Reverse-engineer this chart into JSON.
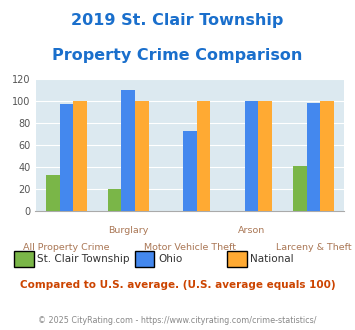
{
  "title_line1": "2019 St. Clair Township",
  "title_line2": "Property Crime Comparison",
  "categories": [
    "All Property Crime",
    "Burglary",
    "Motor Vehicle Theft",
    "Arson",
    "Larceny & Theft"
  ],
  "series": {
    "St. Clair Township": [
      33,
      20,
      0,
      0,
      41
    ],
    "Ohio": [
      97,
      110,
      73,
      100,
      98
    ],
    "National": [
      100,
      100,
      100,
      100,
      100
    ]
  },
  "colors": {
    "St. Clair Township": "#7ab648",
    "Ohio": "#4488ee",
    "National": "#ffaa33"
  },
  "ylim": [
    0,
    120
  ],
  "yticks": [
    0,
    20,
    40,
    60,
    80,
    100,
    120
  ],
  "title_color": "#1a6fcc",
  "title_fontsize": 11.5,
  "background_color": "#dce9f0",
  "note_text": "Compared to U.S. average. (U.S. average equals 100)",
  "footer_text": "© 2025 CityRating.com - https://www.cityrating.com/crime-statistics/",
  "note_color": "#cc4400",
  "footer_color": "#888888",
  "xlabel_top_color": "#aa7755",
  "xlabel_bot_color": "#aa7755"
}
